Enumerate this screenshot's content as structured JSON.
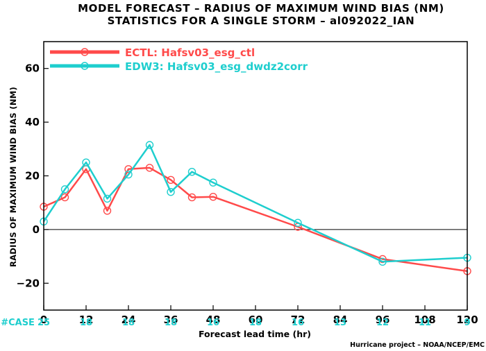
{
  "chart_data": {
    "type": "line",
    "title": "MODEL FORECAST – RADIUS OF MAXIMUM WIND BIAS (NM)",
    "subtitle": "STATISTICS FOR A SINGLE STORM – al092022_IAN",
    "xlabel": "Forecast lead time (hr)",
    "ylabel": "RADIUS OF MAXIMUM WIND BIAS (NM)",
    "xlim": [
      0,
      120
    ],
    "ylim": [
      -30,
      70
    ],
    "x_ticks": [
      0,
      12,
      24,
      36,
      48,
      60,
      72,
      84,
      96,
      108,
      120
    ],
    "y_ticks": [
      -20,
      0,
      20,
      40,
      60
    ],
    "zero_line": true,
    "legend_position": "top-left",
    "series": [
      {
        "name": "ECTL: Hafsv03_esg_ctl",
        "color": "#ff4a4a",
        "x": [
          0,
          6,
          12,
          18,
          24,
          30,
          36,
          42,
          48,
          72,
          96,
          120
        ],
        "y": [
          8.5,
          12,
          22.5,
          7,
          22.5,
          23,
          18.5,
          12,
          12.2,
          1,
          -11,
          -15.5
        ]
      },
      {
        "name": "EDW3: Hafsv03_esg_dwdz2corr",
        "color": "#1ecece",
        "x": [
          0,
          6,
          12,
          18,
          24,
          30,
          36,
          42,
          48,
          72,
          96,
          120
        ],
        "y": [
          3,
          15,
          25,
          11.5,
          20.5,
          31.5,
          14,
          21.5,
          17.5,
          2.5,
          -12,
          -10.5
        ]
      }
    ],
    "case_label": "#CASE",
    "case_counts": [
      {
        "x": 0,
        "value": "25"
      },
      {
        "x": 12,
        "value": "18"
      },
      {
        "x": 24,
        "value": "18"
      },
      {
        "x": 36,
        "value": "18"
      },
      {
        "x": 48,
        "value": "16"
      },
      {
        "x": 60,
        "value": "18"
      },
      {
        "x": 72,
        "value": "16"
      },
      {
        "x": 84,
        "value": "13"
      },
      {
        "x": 96,
        "value": "12"
      },
      {
        "x": 108,
        "value": "11"
      },
      {
        "x": 120,
        "value": "9"
      }
    ],
    "case_color": "#1ecece",
    "credit": "Hurricane project – NOAA/NCEP/EMC"
  }
}
